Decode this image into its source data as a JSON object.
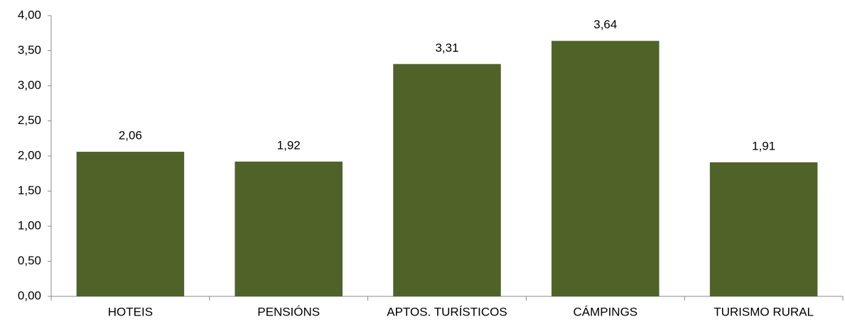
{
  "chart_data": {
    "type": "bar",
    "categories": [
      "HOTEIS",
      "PENSIÓNS",
      "APTOS. TURÍSTICOS",
      "CÁMPINGS",
      "TURISMO RURAL"
    ],
    "values": [
      2.06,
      1.92,
      3.31,
      3.64,
      1.91
    ],
    "value_labels": [
      "2,06",
      "1,92",
      "3,31",
      "3,64",
      "1,91"
    ],
    "color": "#4f6228",
    "ylim": [
      0,
      4
    ],
    "yticks": [
      {
        "value": 0,
        "label": "0,00"
      },
      {
        "value": 0.5,
        "label": "0,50"
      },
      {
        "value": 1,
        "label": "1,00"
      },
      {
        "value": 1.5,
        "label": "1,50"
      },
      {
        "value": 2,
        "label": "2,00"
      },
      {
        "value": 2.5,
        "label": "2,50"
      },
      {
        "value": 3,
        "label": "3,00"
      },
      {
        "value": 3.5,
        "label": "3,50"
      },
      {
        "value": 4,
        "label": "4,00"
      }
    ],
    "grid": false
  }
}
